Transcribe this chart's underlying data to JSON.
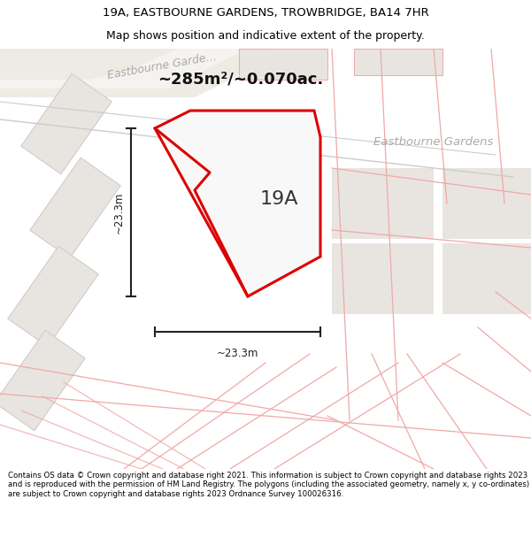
{
  "title_line1": "19A, EASTBOURNE GARDENS, TROWBRIDGE, BA14 7HR",
  "title_line2": "Map shows position and indicative extent of the property.",
  "area_text": "~285m²/~0.070ac.",
  "label_19A": "19A",
  "dim_horiz": "~23.3m",
  "dim_vert": "~23.3m",
  "road_label_topleft": "Eastbourne Garde...",
  "road_label_right": "Eastbourne Gardens",
  "footer_text": "Contains OS data © Crown copyright and database right 2021. This information is subject to Crown copyright and database rights 2023 and is reproduced with the permission of HM Land Registry. The polygons (including the associated geometry, namely x, y co-ordinates) are subject to Crown copyright and database rights 2023 Ordnance Survey 100026316.",
  "map_bg": "#f8f7f5",
  "header_bg": "#ffffff",
  "footer_bg": "#ffffff",
  "plot_fill": "#ffffff",
  "plot_edge": "#dd0000",
  "nb_fill": "#e8e5e0",
  "nb_edge": "#f0a8a8",
  "road_fill": "#eeeae4",
  "dim_color": "#222222",
  "text_dark": "#000000",
  "text_road": "#aaaaaa",
  "text_area": "#111111"
}
